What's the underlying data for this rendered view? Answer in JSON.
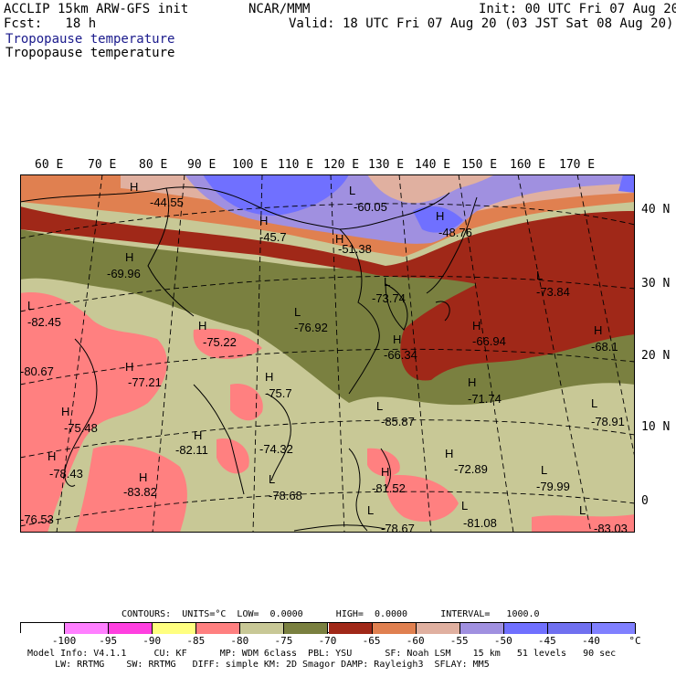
{
  "header": {
    "model": "ACCLIP 15km ARW-GFS init",
    "fcst": "Fcst:   18 h",
    "org": "NCAR/MMM",
    "init": "Init: 00 UTC Fri 07 Aug 20",
    "valid": "Valid: 18 UTC Fri 07 Aug 20 (03 JST Sat 08 Aug 20)",
    "field1": "Tropopause temperature",
    "field2": "Tropopause temperature"
  },
  "longitude_labels": [
    "60 E",
    "70 E",
    "80 E",
    "90 E",
    "100 E",
    "110 E",
    "120 E",
    "130 E",
    "140 E",
    "150 E",
    "160 E",
    "170 E"
  ],
  "latitude_labels": [
    "40 N",
    "30 N",
    "20 N",
    "10 N",
    "0"
  ],
  "map_labels": [
    {
      "t": "H",
      "v": "-44.55"
    },
    {
      "t": "L",
      "v": "-60.05"
    },
    {
      "t": "H",
      "v": "-45.7"
    },
    {
      "t": "H",
      "v": "-51.38"
    },
    {
      "t": "H",
      "v": "-48.76"
    },
    {
      "t": "H",
      "v": "-69.96"
    },
    {
      "t": "L",
      "v": "-73.74"
    },
    {
      "t": "L",
      "v": "-73.84"
    },
    {
      "t": "L",
      "v": "-82.45"
    },
    {
      "t": "L",
      "v": "-76.92"
    },
    {
      "t": "H",
      "v": "-75.22"
    },
    {
      "t": "H",
      "v": "-66.34"
    },
    {
      "t": "H",
      "v": "-66.94"
    },
    {
      "t": "H",
      "v": "-68.1"
    },
    {
      "t": "",
      "v": "-80.67"
    },
    {
      "t": "H",
      "v": "-77.21"
    },
    {
      "t": "H",
      "v": "-75.7"
    },
    {
      "t": "H",
      "v": "-71.74"
    },
    {
      "t": "L",
      "v": "-85.87"
    },
    {
      "t": "L",
      "v": "-78.91"
    },
    {
      "t": "H",
      "v": "-75.48"
    },
    {
      "t": "H",
      "v": "-82.11"
    },
    {
      "t": "",
      "v": "-74.32"
    },
    {
      "t": "H",
      "v": "-72.89"
    },
    {
      "t": "H",
      "v": "-78.43"
    },
    {
      "t": "H",
      "v": "-83.82"
    },
    {
      "t": "L",
      "v": "-78.68"
    },
    {
      "t": "H",
      "v": "-81.52"
    },
    {
      "t": "L",
      "v": "-79.99"
    },
    {
      "t": "L",
      "v": "-81.08"
    },
    {
      "t": "",
      "v": "-76.53"
    },
    {
      "t": "L",
      "v": "-78.67"
    },
    {
      "t": "L",
      "v": "-83.03"
    }
  ],
  "legend": {
    "contours_line": "CONTOURS:  UNITS=°C  LOW=  0.0000      HIGH=  0.0000      INTERVAL=   1000.0",
    "ticks": [
      "-100",
      "-95",
      "-90",
      "-85",
      "-80",
      "-75",
      "-70",
      "-65",
      "-60",
      "-55",
      "-50",
      "-45",
      "-40",
      "°C"
    ],
    "colors": [
      "#ffffff",
      "#ff80ff",
      "#ff40e0",
      "#ffff80",
      "#ff8080",
      "#c8c896",
      "#7a8040",
      "#a02818",
      "#e08050",
      "#e0b0a0",
      "#a090e0",
      "#7070ff",
      "#7070f0",
      "#8080ff"
    ]
  },
  "footer": {
    "line1": "Model Info: V4.1.1     CU: KF      MP: WDM 6class  PBL: YSU      SF: Noah LSM    15 km   51 levels   90 sec",
    "line2": "     LW: RRTMG    SW: RRTMG   DIFF: simple KM: 2D Smagor DAMP: Rayleigh3  SFLAY: MM5"
  },
  "colors": {
    "warm_tan": "#c8c896",
    "olive": "#7a8040",
    "dark_red": "#a02818",
    "orange": "#e08050",
    "pink_tan": "#e0b0a0",
    "lavender": "#a090e0",
    "blue": "#7070ff",
    "salmon": "#ff8080"
  }
}
